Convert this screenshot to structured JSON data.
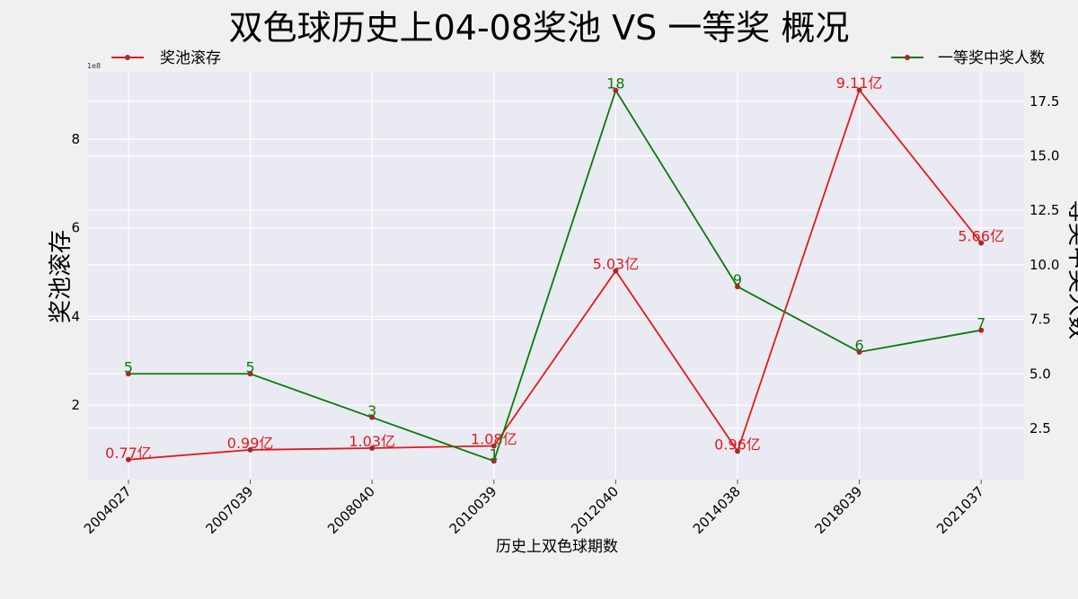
{
  "chart_data": {
    "type": "line",
    "title": "双色球历史上04-08奖池 VS 一等奖 概况",
    "xlabel": "历史上双色球期数",
    "ylabel": "奖池滚存",
    "ylabel_right": "一等奖中奖人数",
    "offset_text": "1e8",
    "categories": [
      "2004027",
      "2007039",
      "2008040",
      "2010039",
      "2012040",
      "2014038",
      "2018039",
      "2021037"
    ],
    "series": [
      {
        "name": "奖池滚存",
        "axis": "left",
        "color": "#e31a1c",
        "values": [
          77000000,
          99000000,
          103000000,
          108000000,
          503000000,
          96000000,
          911000000,
          566000000
        ],
        "labels": [
          "0.77亿",
          "0.99亿",
          "1.03亿",
          "1.08亿",
          "5.03亿",
          "0.96亿",
          "9.11亿",
          "5.66亿"
        ]
      },
      {
        "name": "一等奖中奖人数",
        "axis": "right",
        "color": "#0a7a0a",
        "values": [
          5,
          5,
          3,
          1,
          18,
          9,
          6,
          7
        ],
        "labels": [
          "5",
          "5",
          "3",
          "1",
          "18",
          "9",
          "6",
          "7"
        ]
      }
    ],
    "yticks_left": [
      "2",
      "4",
      "6",
      "8"
    ],
    "yticks_right": [
      "2.5",
      "5.0",
      "7.5",
      "10.0",
      "12.5",
      "15.0",
      "17.5"
    ],
    "ylim_left": [
      32000000,
      952000000
    ],
    "ylim_right": [
      0.15,
      18.85
    ],
    "marker_color": "#a52a2a",
    "grid": true,
    "legend": [
      "top-left",
      "top-right"
    ]
  }
}
